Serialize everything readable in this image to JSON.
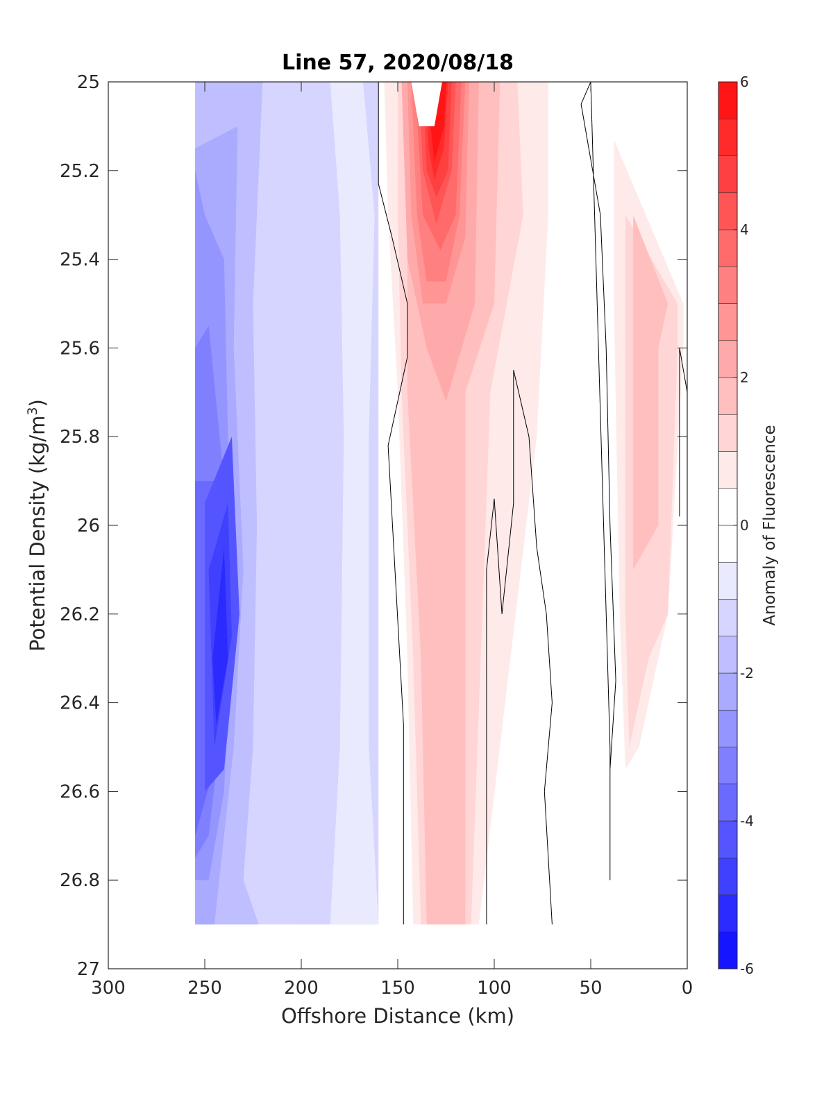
{
  "chart_data": {
    "type": "heatmap",
    "subtype": "filled-contour",
    "title": "Line 57, 2020/08/18",
    "xlabel": "Offshore Distance (km)",
    "ylabel_main": "Potential Density (kg/m",
    "ylabel_sup": "3",
    "ylabel_close": ")",
    "colorbar_label": "Anomaly of Fluorescence",
    "xlim": [
      300,
      0
    ],
    "x_reversed": true,
    "ylim": [
      25,
      27
    ],
    "y_reversed": true,
    "xticks": [
      300,
      250,
      200,
      150,
      100,
      50,
      0
    ],
    "yticks": [
      25,
      25.2,
      25.4,
      25.6,
      25.8,
      26,
      26.2,
      26.4,
      26.6,
      26.8,
      27
    ],
    "ytick_labels": [
      "25",
      "25.2",
      "25.4",
      "25.6",
      "25.8",
      "26",
      "26.2",
      "26.4",
      "26.6",
      "26.8",
      "27"
    ],
    "colorbar_range": [
      -6,
      6
    ],
    "colorbar_ticks": [
      6,
      4,
      2,
      0,
      -2,
      -4,
      -6
    ],
    "colorbar_levels": [
      -6,
      -5.5,
      -5,
      -4.5,
      -4,
      -3.5,
      -3,
      -2.5,
      -2,
      -1.5,
      -1,
      -0.5,
      0,
      0.5,
      1,
      1.5,
      2,
      2.5,
      3,
      3.5,
      4,
      4.5,
      5,
      5.5,
      6
    ],
    "colormap": {
      "negative": "#0000ff",
      "zero": "#ffffff",
      "positive": "#ff0000"
    },
    "grid": false,
    "fill_regions": [
      {
        "value": -1.0,
        "points": [
          [
            255,
            25
          ],
          [
            160,
            25
          ],
          [
            160,
            26.9
          ],
          [
            255,
            26.9
          ]
        ]
      },
      {
        "value": -0.5,
        "points": [
          [
            185,
            25
          ],
          [
            168,
            25
          ],
          [
            162,
            25.3
          ],
          [
            165,
            25.8
          ],
          [
            165,
            26.5
          ],
          [
            160,
            26.9
          ],
          [
            185,
            26.9
          ],
          [
            180,
            26.5
          ],
          [
            178,
            25.8
          ],
          [
            180,
            25.3
          ]
        ]
      },
      {
        "value": -1.0,
        "points": [
          [
            220,
            25
          ],
          [
            185,
            25
          ],
          [
            180,
            25.3
          ],
          [
            178,
            25.8
          ],
          [
            180,
            26.5
          ],
          [
            185,
            26.9
          ],
          [
            205,
            26.9
          ],
          [
            205,
            26.6
          ],
          [
            215,
            26.3
          ],
          [
            210,
            25.8
          ],
          [
            210,
            25.3
          ],
          [
            212,
            25.14
          ],
          [
            217,
            25.1
          ]
        ]
      },
      {
        "value": -1.5,
        "points": [
          [
            255,
            25
          ],
          [
            220,
            25
          ],
          [
            225,
            25.5
          ],
          [
            223,
            26
          ],
          [
            225,
            26.5
          ],
          [
            230,
            26.8
          ],
          [
            222,
            26.9
          ],
          [
            255,
            26.9
          ]
        ]
      },
      {
        "value": -2.0,
        "points": [
          [
            255,
            25.15
          ],
          [
            233,
            25.1
          ],
          [
            235,
            25.6
          ],
          [
            230,
            26.1
          ],
          [
            235,
            26.5
          ],
          [
            245,
            26.9
          ],
          [
            255,
            26.9
          ]
        ]
      },
      {
        "value": -2.5,
        "points": [
          [
            255,
            25.2
          ],
          [
            250,
            25.3
          ],
          [
            240,
            25.4
          ],
          [
            238,
            25.8
          ],
          [
            236,
            26.2
          ],
          [
            240,
            26.6
          ],
          [
            248,
            26.8
          ],
          [
            255,
            26.8
          ]
        ]
      },
      {
        "value": -3.0,
        "points": [
          [
            255,
            25.6
          ],
          [
            248,
            25.55
          ],
          [
            240,
            25.9
          ],
          [
            240,
            26.4
          ],
          [
            248,
            26.7
          ],
          [
            255,
            26.75
          ]
        ]
      },
      {
        "value": -3.5,
        "points": [
          [
            255,
            25.9
          ],
          [
            245,
            25.9
          ],
          [
            238,
            26.2
          ],
          [
            242,
            26.5
          ],
          [
            255,
            26.7
          ]
        ]
      },
      {
        "value": -4.0,
        "points": [
          [
            250,
            25.95
          ],
          [
            236,
            25.8
          ],
          [
            232,
            26.2
          ],
          [
            240,
            26.55
          ],
          [
            250,
            26.6
          ]
        ]
      },
      {
        "value": -4.5,
        "points": [
          [
            248,
            26.1
          ],
          [
            238,
            25.95
          ],
          [
            236,
            26.25
          ],
          [
            245,
            26.5
          ]
        ]
      },
      {
        "value": -5.0,
        "points": [
          [
            246,
            26.3
          ],
          [
            240,
            26.05
          ],
          [
            238,
            26.3
          ],
          [
            244,
            26.45
          ]
        ]
      },
      {
        "value": 0.5,
        "points": [
          [
            157,
            25
          ],
          [
            72,
            25
          ],
          [
            72,
            25.3
          ],
          [
            78,
            25.8
          ],
          [
            108,
            26.9
          ],
          [
            142,
            26.9
          ],
          [
            145,
            26.3
          ],
          [
            150,
            25.7
          ],
          [
            155,
            25.3
          ]
        ]
      },
      {
        "value": 1.0,
        "points": [
          [
            150,
            25
          ],
          [
            88,
            25
          ],
          [
            85,
            25.3
          ],
          [
            102,
            25.7
          ],
          [
            112,
            26.9
          ],
          [
            138,
            26.9
          ],
          [
            142,
            26.3
          ],
          [
            148,
            25.7
          ],
          [
            150,
            25.3
          ]
        ]
      },
      {
        "value": 1.5,
        "points": [
          [
            145,
            25
          ],
          [
            97,
            25
          ],
          [
            100,
            25.5
          ],
          [
            115,
            25.7
          ],
          [
            115,
            26.9
          ],
          [
            135,
            26.9
          ],
          [
            138,
            26.3
          ],
          [
            145,
            25.7
          ]
        ]
      },
      {
        "value": 2.0,
        "points": [
          [
            148,
            25
          ],
          [
            108,
            25
          ],
          [
            110,
            25.5
          ],
          [
            125,
            25.72
          ],
          [
            135,
            25.6
          ],
          [
            145,
            25.4
          ]
        ]
      },
      {
        "value": 2.5,
        "points": [
          [
            145,
            25
          ],
          [
            113,
            25
          ],
          [
            115,
            25.35
          ],
          [
            125,
            25.5
          ],
          [
            137,
            25.5
          ],
          [
            143,
            25.3
          ]
        ]
      },
      {
        "value": 3.0,
        "points": [
          [
            143,
            25
          ],
          [
            115,
            25
          ],
          [
            118,
            25.3
          ],
          [
            125,
            25.45
          ],
          [
            135,
            25.45
          ],
          [
            140,
            25.3
          ]
        ]
      },
      {
        "value": 3.5,
        "points": [
          [
            141,
            25
          ],
          [
            117,
            25
          ],
          [
            120,
            25.3
          ],
          [
            128,
            25.38
          ],
          [
            137,
            25.3
          ]
        ]
      },
      {
        "value": 4.0,
        "points": [
          [
            139,
            25
          ],
          [
            120,
            25
          ],
          [
            122,
            25.2
          ],
          [
            130,
            25.32
          ],
          [
            137,
            25.2
          ]
        ]
      },
      {
        "value": 4.5,
        "points": [
          [
            137,
            25
          ],
          [
            122,
            25
          ],
          [
            124,
            25.2
          ],
          [
            130,
            25.26
          ],
          [
            135,
            25.2
          ]
        ]
      },
      {
        "value": 5.0,
        "points": [
          [
            135,
            25
          ],
          [
            124,
            25
          ],
          [
            126,
            25.15
          ],
          [
            131,
            25.22
          ],
          [
            134,
            25.15
          ]
        ]
      },
      {
        "value": 5.5,
        "points": [
          [
            134,
            25
          ],
          [
            125,
            25
          ],
          [
            126,
            25.1
          ],
          [
            131,
            25.18
          ],
          [
            133,
            25.1
          ]
        ]
      },
      {
        "value": 0.5,
        "points": [
          [
            38,
            25.13
          ],
          [
            2,
            25.5
          ],
          [
            2,
            25.6
          ],
          [
            10,
            26.2
          ],
          [
            25,
            26.5
          ],
          [
            32,
            26.55
          ],
          [
            35,
            26.2
          ],
          [
            38,
            25.5
          ]
        ]
      },
      {
        "value": 1.0,
        "points": [
          [
            32,
            25.3
          ],
          [
            5,
            25.5
          ],
          [
            5,
            25.6
          ],
          [
            10,
            26.2
          ],
          [
            20,
            26.3
          ],
          [
            30,
            26.5
          ],
          [
            32,
            26.2
          ],
          [
            32,
            25.5
          ]
        ]
      },
      {
        "value": 1.5,
        "points": [
          [
            28,
            25.3
          ],
          [
            10,
            25.5
          ],
          [
            15,
            25.6
          ],
          [
            15,
            26.0
          ],
          [
            28,
            26.1
          ],
          [
            28,
            25.5
          ]
        ]
      }
    ],
    "holes": [
      {
        "value": 6.0,
        "points": [
          [
            143,
            25
          ],
          [
            127,
            25
          ],
          [
            131,
            25.1
          ],
          [
            139,
            25.1
          ]
        ]
      }
    ],
    "zero_contour_lines": [
      [
        [
          160,
          25
        ],
        [
          160,
          25.23
        ],
        [
          153,
          25.35
        ],
        [
          145,
          25.5
        ],
        [
          145,
          25.62
        ],
        [
          150,
          25.72
        ],
        [
          155,
          25.82
        ],
        [
          147,
          26.45
        ],
        [
          147,
          26.9
        ]
      ],
      [
        [
          104,
          26.9
        ],
        [
          104,
          26.1
        ],
        [
          100,
          25.94
        ],
        [
          96,
          26.2
        ],
        [
          90,
          25.95
        ],
        [
          90,
          25.65
        ],
        [
          82,
          25.8
        ],
        [
          78,
          26.05
        ],
        [
          73,
          26.2
        ],
        [
          70,
          26.4
        ],
        [
          74,
          26.6
        ],
        [
          70,
          26.9
        ]
      ],
      [
        [
          40,
          26.8
        ],
        [
          40,
          26.5
        ],
        [
          50,
          25
        ],
        [
          55,
          25.05
        ],
        [
          45,
          25.3
        ],
        [
          42,
          25.6
        ],
        [
          40,
          26.0
        ],
        [
          37,
          26.35
        ],
        [
          40,
          26.55
        ],
        [
          40,
          26.8
        ]
      ],
      [
        [
          4,
          25.98
        ],
        [
          4,
          25.6
        ],
        [
          0,
          25.7
        ]
      ]
    ]
  }
}
